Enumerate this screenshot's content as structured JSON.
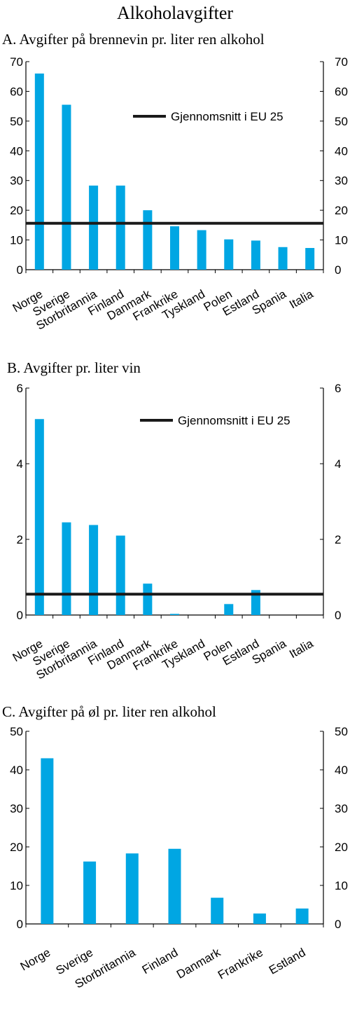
{
  "figure_title": "Alkoholavgifter",
  "legend_label": "Gjennomsnitt i EU 25",
  "colors": {
    "bar": "#00A6E3",
    "avg_line": "#1a1a1a",
    "axis": "#000000"
  },
  "chart_data": [
    {
      "type": "bar",
      "title": "A. Avgifter på brennevin pr. liter ren alkohol",
      "categories": [
        "Norge",
        "Sverige",
        "Storbritannia",
        "Finland",
        "Danmark",
        "Frankrike",
        "Tyskland",
        "Polen",
        "Estland",
        "Spania",
        "Italia"
      ],
      "values": [
        66,
        55.5,
        28.3,
        28.3,
        20,
        14.6,
        13.3,
        10.2,
        9.8,
        7.6,
        7.3
      ],
      "eu25_average": 15.6,
      "ylim": [
        0,
        70
      ],
      "yticks": [
        0,
        10,
        20,
        30,
        40,
        50,
        60,
        70
      ],
      "ytick_labels": [
        "0",
        "10",
        "20",
        "30",
        "40",
        "50",
        "60",
        "70"
      ],
      "legend": {
        "label": "Gjennomsnitt i EU 25",
        "placement": "top-right"
      },
      "grid": false
    },
    {
      "type": "bar",
      "title": "B. Avgifter pr. liter vin",
      "categories": [
        "Norge",
        "Sverige",
        "Storbritannia",
        "Finland",
        "Danmark",
        "Frankrike",
        "Tyskland",
        "Polen",
        "Estland",
        "Spania",
        "Italia"
      ],
      "values": [
        5.18,
        2.45,
        2.38,
        2.1,
        0.83,
        0.03,
        0,
        0.29,
        0.66,
        0,
        0
      ],
      "eu25_average": 0.55,
      "ylim": [
        0,
        6
      ],
      "yticks": [
        0,
        2,
        4,
        6
      ],
      "ytick_labels": [
        "0",
        "2",
        "4",
        "6"
      ],
      "legend": {
        "label": "Gjennomsnitt i EU 25",
        "placement": "top-right"
      },
      "grid": false
    },
    {
      "type": "bar",
      "title": "C.  Avgifter på øl pr. liter ren alkohol",
      "categories": [
        "Norge",
        "Sverige",
        "Storbritannia",
        "Finland",
        "Danmark",
        "Frankrike",
        "Estland"
      ],
      "values": [
        43,
        16.2,
        18.3,
        19.5,
        6.8,
        2.7,
        4
      ],
      "ylim": [
        0,
        50
      ],
      "yticks": [
        0,
        10,
        20,
        30,
        40,
        50
      ],
      "ytick_labels": [
        "0",
        "10",
        "20",
        "30",
        "40",
        "50"
      ],
      "grid": false
    }
  ]
}
